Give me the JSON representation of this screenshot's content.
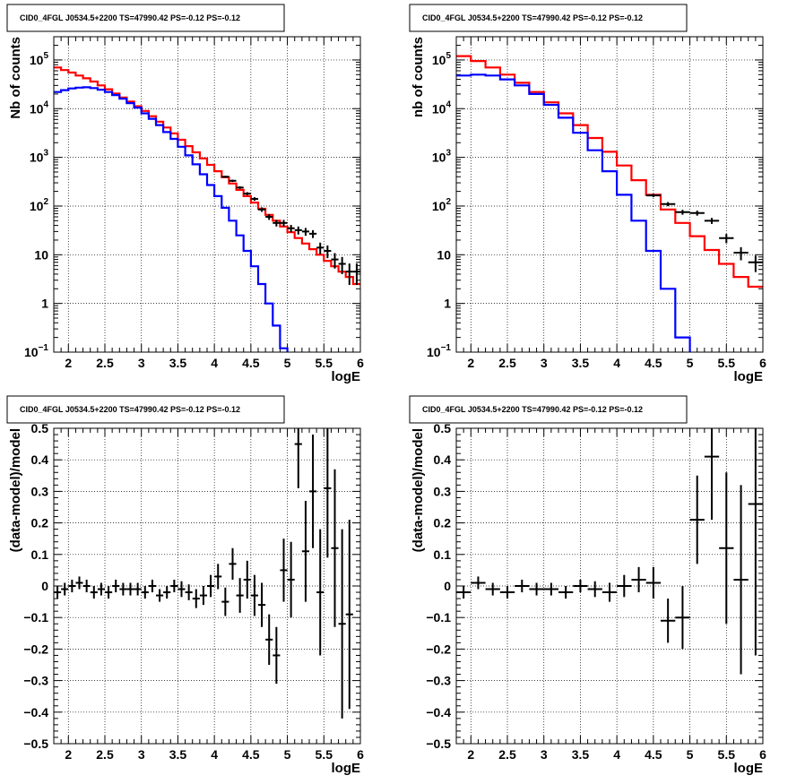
{
  "chart_data": [
    {
      "id": "tl",
      "type": "line",
      "title": "CID0_4FGL J0534.5+2200 TS=47990.42 PS=-0.12 PS=-0.12",
      "xlabel": "logE",
      "ylabel": "Nb of counts",
      "xlim": [
        1.8,
        6.0
      ],
      "ylim": [
        0.1,
        300000
      ],
      "ylog": true,
      "grid": true,
      "x_ticks": [
        "2",
        "2.5",
        "3",
        "3.5",
        "4",
        "4.5",
        "5",
        "5.5",
        "6"
      ],
      "y_ticks": [
        {
          "v": 0.1,
          "t": "10",
          "sup": "−1"
        },
        {
          "v": 1,
          "t": "1",
          "sup": ""
        },
        {
          "v": 10,
          "t": "10",
          "sup": ""
        },
        {
          "v": 100,
          "t": "10",
          "sup": "2"
        },
        {
          "v": 1000,
          "t": "10",
          "sup": "3"
        },
        {
          "v": 10000,
          "t": "10",
          "sup": "4"
        },
        {
          "v": 100000,
          "t": "10",
          "sup": "5"
        }
      ],
      "bin_width": 0.1,
      "series": [
        {
          "color": "#ff0000",
          "kind": "step",
          "x": [
            1.8,
            1.9,
            2.0,
            2.1,
            2.2,
            2.3,
            2.4,
            2.5,
            2.6,
            2.7,
            2.8,
            2.9,
            3.0,
            3.1,
            3.2,
            3.3,
            3.4,
            3.5,
            3.6,
            3.7,
            3.8,
            3.9,
            4.0,
            4.1,
            4.2,
            4.3,
            4.4,
            4.5,
            4.6,
            4.7,
            4.8,
            4.9,
            5.0,
            5.1,
            5.2,
            5.3,
            5.4,
            5.5,
            5.6,
            5.7,
            5.8,
            5.9
          ],
          "values": [
            70000,
            62000,
            55000,
            48000,
            42000,
            36000,
            30000,
            25000,
            20500,
            17000,
            14000,
            11200,
            9000,
            7000,
            5400,
            4100,
            3100,
            2300,
            1700,
            1270,
            950,
            700,
            520,
            390,
            290,
            215,
            160,
            118,
            88,
            66,
            50,
            38,
            29,
            22,
            17,
            13,
            10,
            7.5,
            5.8,
            4.5,
            3.5,
            2.5
          ]
        },
        {
          "color": "#0000ff",
          "kind": "step",
          "x": [
            1.8,
            1.9,
            2.0,
            2.1,
            2.2,
            2.3,
            2.4,
            2.5,
            2.6,
            2.7,
            2.8,
            2.9,
            3.0,
            3.1,
            3.2,
            3.3,
            3.4,
            3.5,
            3.6,
            3.7,
            3.8,
            3.9,
            4.0,
            4.1,
            4.2,
            4.3,
            4.4,
            4.5,
            4.6,
            4.7,
            4.8,
            4.9,
            5.0
          ],
          "values": [
            22000,
            24000,
            26000,
            27000,
            27500,
            26500,
            24500,
            22000,
            19000,
            16000,
            13000,
            10500,
            8000,
            6200,
            4600,
            3300,
            2400,
            1650,
            1100,
            720,
            450,
            270,
            160,
            92,
            50,
            25,
            12,
            5.8,
            2.5,
            1.0,
            0.35,
            0.12,
            0.05
          ]
        },
        {
          "color": "#000000",
          "kind": "points",
          "x": [
            4.15,
            4.25,
            4.35,
            4.45,
            4.55,
            4.65,
            4.75,
            4.85,
            4.95,
            5.05,
            5.15,
            5.25,
            5.35,
            5.45,
            5.55,
            5.65,
            5.75,
            5.85,
            5.95
          ],
          "values": [
            400,
            330,
            240,
            180,
            140,
            85,
            60,
            45,
            45,
            35,
            32,
            30,
            27,
            14,
            12,
            8,
            6.5,
            4.5,
            4.5
          ],
          "err": [
            20,
            18,
            15,
            13,
            12,
            9,
            8,
            7,
            7,
            6,
            6,
            5.5,
            5,
            3.7,
            3.5,
            2.8,
            2.5,
            2.1,
            2.1
          ]
        }
      ]
    },
    {
      "id": "tr",
      "type": "line",
      "title": "CID0_4FGL J0534.5+2200 TS=47990.42 PS=-0.12 PS=-0.12",
      "xlabel": "logE",
      "ylabel": "nb of counts",
      "xlim": [
        1.8,
        6.0
      ],
      "ylim": [
        0.1,
        300000
      ],
      "ylog": true,
      "grid": true,
      "x_ticks": [
        "2",
        "2.5",
        "3",
        "3.5",
        "4",
        "4.5",
        "5",
        "5.5",
        "6"
      ],
      "y_ticks": [
        {
          "v": 0.1,
          "t": "10",
          "sup": "−1"
        },
        {
          "v": 1,
          "t": "1",
          "sup": ""
        },
        {
          "v": 10,
          "t": "10",
          "sup": ""
        },
        {
          "v": 100,
          "t": "10",
          "sup": "2"
        },
        {
          "v": 1000,
          "t": "10",
          "sup": "3"
        },
        {
          "v": 10000,
          "t": "10",
          "sup": "4"
        },
        {
          "v": 100000,
          "t": "10",
          "sup": "5"
        }
      ],
      "bin_width": 0.2,
      "series": [
        {
          "color": "#ff0000",
          "kind": "step",
          "x": [
            1.8,
            2.0,
            2.2,
            2.4,
            2.6,
            2.8,
            3.0,
            3.2,
            3.4,
            3.6,
            3.8,
            4.0,
            4.2,
            4.4,
            4.6,
            4.8,
            5.0,
            5.2,
            5.4,
            5.6,
            5.8
          ],
          "values": [
            120000,
            95000,
            70000,
            50000,
            34000,
            22000,
            13500,
            8000,
            4600,
            2500,
            1300,
            680,
            340,
            170,
            85,
            45,
            24,
            12.5,
            6.5,
            3.5,
            2.2
          ]
        },
        {
          "color": "#0000ff",
          "kind": "step",
          "x": [
            1.8,
            2.0,
            2.2,
            2.4,
            2.6,
            2.8,
            3.0,
            3.2,
            3.4,
            3.6,
            3.8,
            4.0,
            4.2,
            4.4,
            4.6,
            4.8,
            5.0
          ],
          "values": [
            48000,
            50000,
            48000,
            40000,
            30000,
            20000,
            12000,
            6500,
            3200,
            1400,
            520,
            170,
            50,
            12,
            2,
            0.2,
            0.02
          ]
        },
        {
          "color": "#000000",
          "kind": "points",
          "x": [
            4.5,
            4.7,
            4.9,
            5.1,
            5.3,
            5.5,
            5.7,
            5.9
          ],
          "values": [
            165,
            110,
            75,
            72,
            50,
            22,
            11,
            7
          ],
          "err": [
            13,
            10.5,
            8.7,
            8.5,
            7,
            4.7,
            3.3,
            2.6
          ]
        }
      ]
    },
    {
      "id": "bl",
      "type": "scatter",
      "title": "CID0_4FGL J0534.5+2200 TS=47990.42 PS=-0.12 PS=-0.12",
      "xlabel": "logE",
      "ylabel": "(data-model)/model",
      "xlim": [
        1.8,
        6.0
      ],
      "ylim": [
        -0.5,
        0.5
      ],
      "ylog": false,
      "grid": true,
      "x_ticks": [
        "2",
        "2.5",
        "3",
        "3.5",
        "4",
        "4.5",
        "5",
        "5.5",
        "6"
      ],
      "y_ticks": [
        {
          "v": -0.5,
          "t": "−0.5",
          "sup": ""
        },
        {
          "v": -0.4,
          "t": "−0.4",
          "sup": ""
        },
        {
          "v": -0.3,
          "t": "−0.3",
          "sup": ""
        },
        {
          "v": -0.2,
          "t": "−0.2",
          "sup": ""
        },
        {
          "v": -0.1,
          "t": "−0.1",
          "sup": ""
        },
        {
          "v": 0,
          "t": "0",
          "sup": ""
        },
        {
          "v": 0.1,
          "t": "0.1",
          "sup": ""
        },
        {
          "v": 0.2,
          "t": "0.2",
          "sup": ""
        },
        {
          "v": 0.3,
          "t": "0.3",
          "sup": ""
        },
        {
          "v": 0.4,
          "t": "0.4",
          "sup": ""
        },
        {
          "v": 0.5,
          "t": "0.5",
          "sup": ""
        }
      ],
      "bin_width": 0.1,
      "series": [
        {
          "color": "#000000",
          "kind": "points",
          "x": [
            1.85,
            1.95,
            2.05,
            2.15,
            2.25,
            2.35,
            2.45,
            2.55,
            2.65,
            2.75,
            2.85,
            2.95,
            3.05,
            3.15,
            3.25,
            3.35,
            3.45,
            3.55,
            3.65,
            3.75,
            3.85,
            3.95,
            4.05,
            4.15,
            4.25,
            4.35,
            4.45,
            4.55,
            4.65,
            4.75,
            4.85,
            4.95,
            5.05,
            5.15,
            5.25,
            5.35,
            5.45,
            5.55,
            5.65,
            5.75,
            5.85
          ],
          "values": [
            -0.02,
            -0.01,
            0.0,
            0.01,
            0.0,
            -0.02,
            -0.01,
            -0.02,
            0.0,
            -0.01,
            -0.01,
            -0.01,
            -0.02,
            0.0,
            -0.03,
            -0.02,
            0.0,
            -0.01,
            -0.02,
            -0.04,
            -0.03,
            0.0,
            0.03,
            -0.05,
            0.07,
            -0.03,
            0.02,
            -0.03,
            -0.06,
            -0.17,
            -0.22,
            0.05,
            0.02,
            0.45,
            0.11,
            0.3,
            -0.02,
            0.31,
            0.12,
            -0.12,
            -0.09
          ],
          "err": [
            0.02,
            0.02,
            0.02,
            0.02,
            0.02,
            0.02,
            0.02,
            0.02,
            0.02,
            0.02,
            0.02,
            0.02,
            0.02,
            0.02,
            0.02,
            0.02,
            0.02,
            0.025,
            0.025,
            0.03,
            0.03,
            0.035,
            0.04,
            0.045,
            0.05,
            0.055,
            0.06,
            0.065,
            0.07,
            0.08,
            0.09,
            0.1,
            0.12,
            0.14,
            0.16,
            0.18,
            0.2,
            0.22,
            0.25,
            0.3,
            0.3
          ]
        }
      ]
    },
    {
      "id": "br",
      "type": "scatter",
      "title": "CID0_4FGL J0534.5+2200 TS=47990.42 PS=-0.12 PS=-0.12",
      "xlabel": "logE",
      "ylabel": "(data-model)/model",
      "xlim": [
        1.8,
        6.0
      ],
      "ylim": [
        -0.5,
        0.5
      ],
      "ylog": false,
      "grid": true,
      "x_ticks": [
        "2",
        "2.5",
        "3",
        "3.5",
        "4",
        "4.5",
        "5",
        "5.5",
        "6"
      ],
      "y_ticks": [
        {
          "v": -0.5,
          "t": "−0.5",
          "sup": ""
        },
        {
          "v": -0.4,
          "t": "−0.4",
          "sup": ""
        },
        {
          "v": -0.3,
          "t": "−0.3",
          "sup": ""
        },
        {
          "v": -0.2,
          "t": "−0.2",
          "sup": ""
        },
        {
          "v": -0.1,
          "t": "−0.1",
          "sup": ""
        },
        {
          "v": 0,
          "t": "0",
          "sup": ""
        },
        {
          "v": 0.1,
          "t": "0.1",
          "sup": ""
        },
        {
          "v": 0.2,
          "t": "0.2",
          "sup": ""
        },
        {
          "v": 0.3,
          "t": "0.3",
          "sup": ""
        },
        {
          "v": 0.4,
          "t": "0.4",
          "sup": ""
        },
        {
          "v": 0.5,
          "t": "0.5",
          "sup": ""
        }
      ],
      "bin_width": 0.2,
      "series": [
        {
          "color": "#000000",
          "kind": "points",
          "x": [
            1.9,
            2.1,
            2.3,
            2.5,
            2.7,
            2.9,
            3.1,
            3.3,
            3.5,
            3.7,
            3.9,
            4.1,
            4.3,
            4.5,
            4.7,
            4.9,
            5.1,
            5.3,
            5.5,
            5.7,
            5.9
          ],
          "values": [
            -0.02,
            0.01,
            -0.01,
            -0.02,
            0.0,
            -0.01,
            -0.01,
            -0.02,
            0.0,
            -0.01,
            -0.02,
            0.0,
            0.02,
            0.01,
            -0.11,
            -0.1,
            0.21,
            0.41,
            0.12,
            0.02,
            0.26
          ],
          "err": [
            0.02,
            0.02,
            0.02,
            0.02,
            0.02,
            0.02,
            0.02,
            0.02,
            0.02,
            0.025,
            0.03,
            0.035,
            0.04,
            0.05,
            0.07,
            0.1,
            0.14,
            0.2,
            0.24,
            0.3,
            0.48
          ]
        }
      ]
    }
  ]
}
